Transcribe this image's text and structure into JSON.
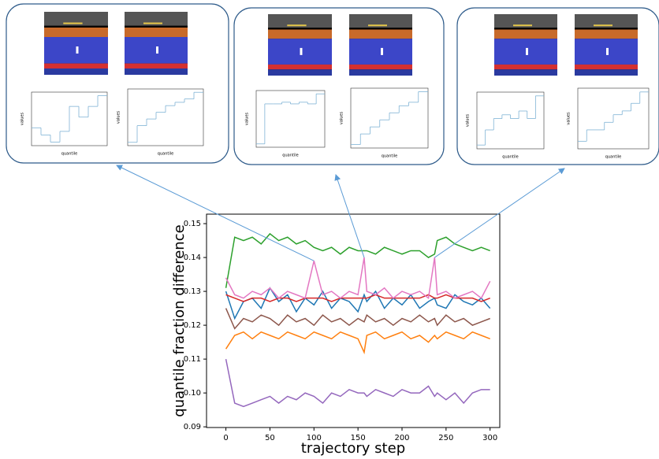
{
  "chart_data": [
    {
      "type": "line",
      "x_label": "trajectory step",
      "y_label": "quantile fraction difference",
      "x": [
        0,
        10,
        20,
        30,
        40,
        50,
        60,
        70,
        80,
        90,
        100,
        110,
        120,
        130,
        140,
        150,
        157,
        160,
        170,
        180,
        190,
        200,
        210,
        220,
        230,
        237,
        240,
        250,
        260,
        270,
        280,
        290,
        300
      ],
      "xlim": [
        -22,
        311
      ],
      "ylim": [
        0.0898,
        0.1528
      ],
      "xticks": [
        0,
        50,
        100,
        150,
        200,
        250,
        300
      ],
      "yticks": [
        0.09,
        {
          "value": 0.1,
          "label": "0.10"
        },
        0.11,
        0.12,
        0.13,
        0.14,
        0.15
      ],
      "series": [
        {
          "color": "#1f77b4",
          "values": [
            0.13,
            0.122,
            0.127,
            0.128,
            0.125,
            0.131,
            0.127,
            0.129,
            0.124,
            0.128,
            0.126,
            0.13,
            0.125,
            0.128,
            0.127,
            0.124,
            0.129,
            0.127,
            0.13,
            0.125,
            0.128,
            0.126,
            0.129,
            0.125,
            0.127,
            0.128,
            0.126,
            0.125,
            0.129,
            0.127,
            0.126,
            0.128,
            0.125
          ]
        },
        {
          "color": "#ff7f0e",
          "values": [
            0.113,
            0.117,
            0.118,
            0.116,
            0.118,
            0.117,
            0.116,
            0.118,
            0.117,
            0.116,
            0.118,
            0.117,
            0.116,
            0.118,
            0.117,
            0.116,
            0.112,
            0.117,
            0.118,
            0.116,
            0.117,
            0.118,
            0.116,
            0.117,
            0.115,
            0.117,
            0.116,
            0.118,
            0.117,
            0.116,
            0.118,
            0.117,
            0.116
          ]
        },
        {
          "color": "#2ca02c",
          "values": [
            0.131,
            0.146,
            0.145,
            0.146,
            0.144,
            0.147,
            0.145,
            0.146,
            0.144,
            0.145,
            0.143,
            0.142,
            0.143,
            0.141,
            0.143,
            0.142,
            0.142,
            0.142,
            0.141,
            0.143,
            0.142,
            0.141,
            0.142,
            0.142,
            0.14,
            0.141,
            0.145,
            0.146,
            0.144,
            0.143,
            0.142,
            0.143,
            0.142
          ]
        },
        {
          "color": "#d62728",
          "values": [
            0.129,
            0.128,
            0.127,
            0.128,
            0.128,
            0.127,
            0.128,
            0.128,
            0.127,
            0.128,
            0.128,
            0.128,
            0.127,
            0.128,
            0.128,
            0.128,
            0.128,
            0.128,
            0.129,
            0.128,
            0.128,
            0.128,
            0.128,
            0.128,
            0.129,
            0.128,
            0.128,
            0.129,
            0.128,
            0.128,
            0.128,
            0.127,
            0.128
          ]
        },
        {
          "color": "#9467bd",
          "values": [
            0.11,
            0.097,
            0.096,
            0.097,
            0.098,
            0.099,
            0.097,
            0.099,
            0.098,
            0.1,
            0.099,
            0.097,
            0.1,
            0.099,
            0.101,
            0.1,
            0.1,
            0.099,
            0.101,
            0.1,
            0.099,
            0.101,
            0.1,
            0.1,
            0.102,
            0.099,
            0.1,
            0.098,
            0.1,
            0.097,
            0.1,
            0.101,
            0.101
          ]
        },
        {
          "color": "#8c564b",
          "values": [
            0.125,
            0.119,
            0.122,
            0.121,
            0.123,
            0.122,
            0.12,
            0.123,
            0.121,
            0.122,
            0.12,
            0.123,
            0.121,
            0.122,
            0.12,
            0.122,
            0.121,
            0.123,
            0.121,
            0.122,
            0.12,
            0.122,
            0.121,
            0.123,
            0.121,
            0.122,
            0.12,
            0.123,
            0.121,
            0.122,
            0.12,
            0.121,
            0.122
          ]
        },
        {
          "color": "#e377c2",
          "values": [
            0.134,
            0.129,
            0.128,
            0.13,
            0.129,
            0.131,
            0.128,
            0.13,
            0.129,
            0.128,
            0.139,
            0.129,
            0.13,
            0.128,
            0.13,
            0.129,
            0.14,
            0.13,
            0.129,
            0.131,
            0.128,
            0.13,
            0.129,
            0.13,
            0.128,
            0.14,
            0.129,
            0.13,
            0.128,
            0.129,
            0.13,
            0.128,
            0.133
          ]
        }
      ]
    },
    {
      "type": "step",
      "x_label": "quantile",
      "y_label": "values",
      "color": "#7fb3d5",
      "x": [
        0.0625,
        0.1875,
        0.3125,
        0.4375,
        0.5625,
        0.6875,
        0.8125,
        0.9375
      ],
      "xlim": [
        0,
        1
      ],
      "ylim": [
        -0.2,
        1.3
      ],
      "values": [
        0.3,
        0.1,
        -0.1,
        0.2,
        0.9,
        0.6,
        0.9,
        1.2
      ]
    },
    {
      "type": "step",
      "x_label": "quantile",
      "y_label": "values",
      "color": "#7fb3d5",
      "x": [
        0.0625,
        0.1875,
        0.3125,
        0.4375,
        0.5625,
        0.6875,
        0.8125,
        0.9375
      ],
      "xlim": [
        0,
        1
      ],
      "ylim": [
        0,
        1.7
      ],
      "values": [
        0.1,
        0.6,
        0.8,
        1.0,
        1.2,
        1.3,
        1.4,
        1.6
      ]
    },
    {
      "type": "step",
      "x_label": "quantile",
      "y_label": "values",
      "color": "#7fb3d5",
      "x": [
        0.0625,
        0.1875,
        0.3125,
        0.4375,
        0.5625,
        0.6875,
        0.8125,
        0.9375
      ],
      "xlim": [
        0,
        1
      ],
      "ylim": [
        -0.7,
        1.0
      ],
      "values": [
        -0.6,
        0.6,
        0.6,
        0.65,
        0.6,
        0.65,
        0.6,
        0.9
      ]
    },
    {
      "type": "step",
      "x_label": "quantile",
      "y_label": "values",
      "color": "#7fb3d5",
      "x": [
        0.0625,
        0.1875,
        0.3125,
        0.4375,
        0.5625,
        0.6875,
        0.8125,
        0.9375
      ],
      "xlim": [
        0,
        1
      ],
      "ylim": [
        0,
        1.7
      ],
      "values": [
        0.1,
        0.4,
        0.6,
        0.8,
        1.0,
        1.2,
        1.3,
        1.6
      ]
    },
    {
      "type": "step",
      "x_label": "quantile",
      "y_label": "values",
      "color": "#7fb3d5",
      "x": [
        0.0625,
        0.1875,
        0.3125,
        0.4375,
        0.5625,
        0.6875,
        0.8125,
        0.9375
      ],
      "xlim": [
        0,
        1
      ],
      "ylim": [
        -0.3,
        1.2
      ],
      "values": [
        -0.2,
        0.2,
        0.5,
        0.6,
        0.5,
        0.7,
        0.5,
        1.1
      ]
    },
    {
      "type": "step",
      "x_label": "quantile",
      "y_label": "values",
      "color": "#7fb3d5",
      "x": [
        0.0625,
        0.1875,
        0.3125,
        0.4375,
        0.5625,
        0.6875,
        0.8125,
        0.9375
      ],
      "xlim": [
        0,
        1
      ],
      "ylim": [
        0,
        1.6
      ],
      "values": [
        0.2,
        0.5,
        0.5,
        0.7,
        0.9,
        1.0,
        1.2,
        1.5
      ]
    }
  ]
}
